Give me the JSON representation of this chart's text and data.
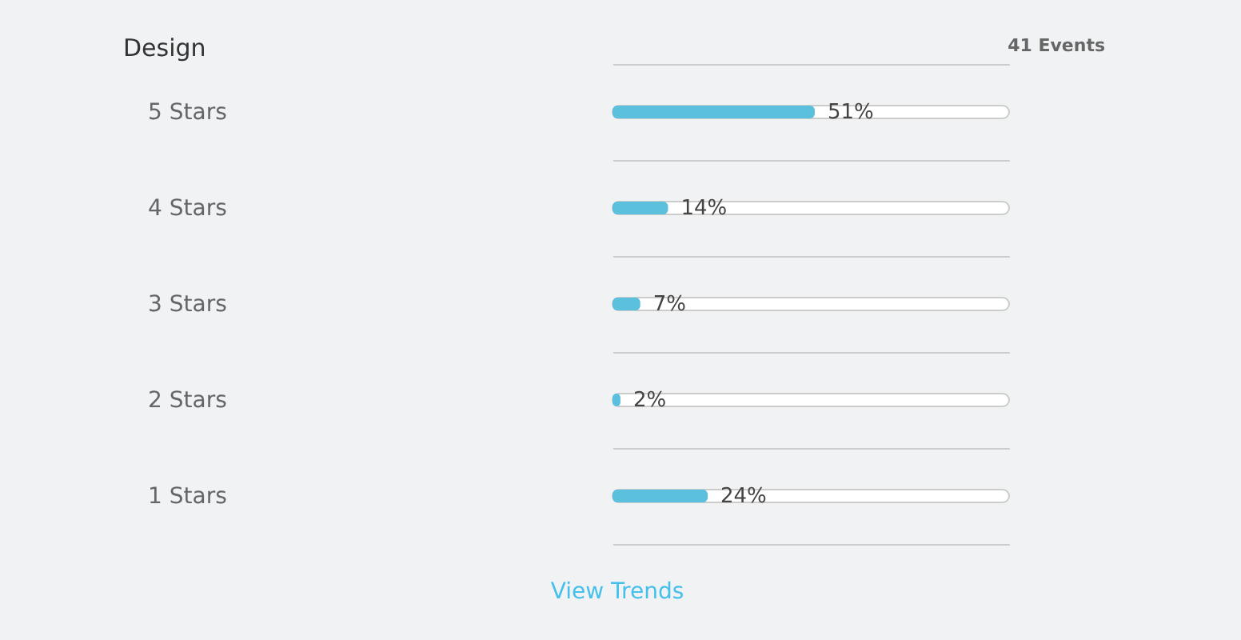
{
  "chart_data": {
    "type": "bar",
    "orientation": "horizontal",
    "title": "Design",
    "annotations": [
      "41 Events",
      "View Trends"
    ],
    "categories": [
      "5 Stars",
      "4 Stars",
      "3 Stars",
      "2 Stars",
      "1 Stars"
    ],
    "values": [
      51,
      14,
      7,
      2,
      24
    ],
    "value_labels": [
      "51%",
      "14%",
      "7%",
      "2%",
      "24%"
    ],
    "color": "#5bc0de",
    "xlim": [
      0,
      100
    ],
    "tick_labels": "y",
    "grid": "y"
  }
}
